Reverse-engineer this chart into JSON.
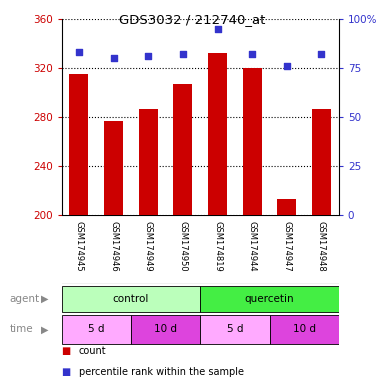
{
  "title": "GDS3032 / 212740_at",
  "samples": [
    "GSM174945",
    "GSM174946",
    "GSM174949",
    "GSM174950",
    "GSM174819",
    "GSM174944",
    "GSM174947",
    "GSM174948"
  ],
  "counts": [
    315,
    277,
    287,
    307,
    332,
    320,
    213,
    287
  ],
  "percentile_ranks": [
    83,
    80,
    81,
    82,
    95,
    82,
    76,
    82
  ],
  "y_min": 200,
  "y_max": 360,
  "y_ticks": [
    200,
    240,
    280,
    320,
    360
  ],
  "y2_ticks": [
    0,
    25,
    50,
    75,
    100
  ],
  "bar_color": "#cc0000",
  "dot_color": "#3333cc",
  "agent_groups": [
    {
      "label": "control",
      "start": 0,
      "end": 4,
      "color": "#bbffbb"
    },
    {
      "label": "quercetin",
      "start": 4,
      "end": 8,
      "color": "#44ee44"
    }
  ],
  "time_groups": [
    {
      "label": "5 d",
      "start": 0,
      "end": 2,
      "color": "#ffaaff"
    },
    {
      "label": "10 d",
      "start": 2,
      "end": 4,
      "color": "#dd44dd"
    },
    {
      "label": "5 d",
      "start": 4,
      "end": 6,
      "color": "#ffaaff"
    },
    {
      "label": "10 d",
      "start": 6,
      "end": 8,
      "color": "#dd44dd"
    }
  ],
  "xlabel_agent": "agent",
  "xlabel_time": "time",
  "legend_count_label": "count",
  "legend_pct_label": "percentile rank within the sample",
  "bar_width": 0.55,
  "figsize": [
    3.85,
    3.84
  ],
  "dpi": 100
}
